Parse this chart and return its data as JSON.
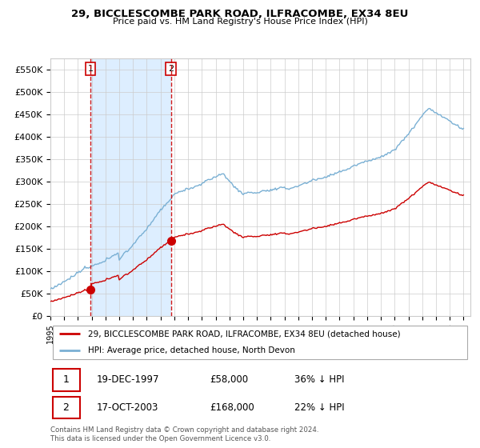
{
  "title": "29, BICCLESCOMBE PARK ROAD, ILFRACOMBE, EX34 8EU",
  "subtitle": "Price paid vs. HM Land Registry's House Price Index (HPI)",
  "legend_line1": "29, BICCLESCOMBE PARK ROAD, ILFRACOMBE, EX34 8EU (detached house)",
  "legend_line2": "HPI: Average price, detached house, North Devon",
  "footer": "Contains HM Land Registry data © Crown copyright and database right 2024.\nThis data is licensed under the Open Government Licence v3.0.",
  "sale1_date": "19-DEC-1997",
  "sale1_price": 58000,
  "sale1_label": "36% ↓ HPI",
  "sale2_date": "17-OCT-2003",
  "sale2_price": 168000,
  "sale2_label": "22% ↓ HPI",
  "hpi_color": "#7ab0d4",
  "sale_color": "#cc0000",
  "dashed_color": "#cc0000",
  "shade_color": "#ddeeff",
  "ylim": [
    0,
    575000
  ],
  "yticks": [
    0,
    50000,
    100000,
    150000,
    200000,
    250000,
    300000,
    350000,
    400000,
    450000,
    500000,
    550000
  ],
  "ytick_labels": [
    "£0",
    "£50K",
    "£100K",
    "£150K",
    "£200K",
    "£250K",
    "£300K",
    "£350K",
    "£400K",
    "£450K",
    "£500K",
    "£550K"
  ],
  "xlim_start": 1995.0,
  "xlim_end": 2025.5,
  "sale1_t": 1997.9167,
  "sale2_t": 2003.75
}
